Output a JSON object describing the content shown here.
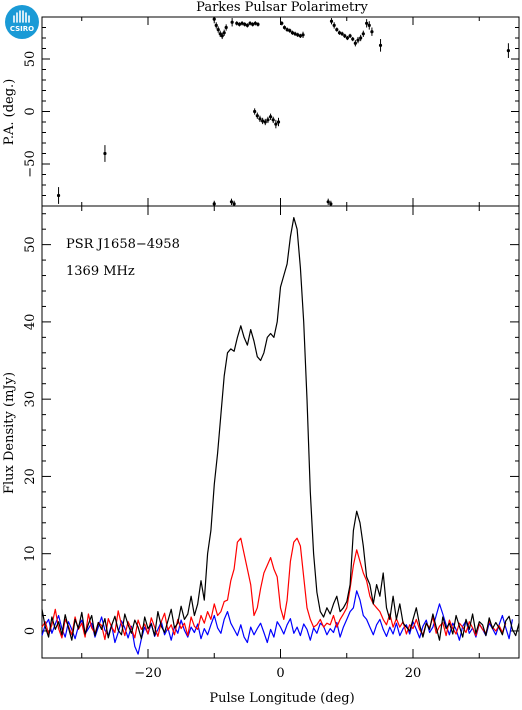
{
  "title": "Parkes Pulsar Polarimetry",
  "logo": {
    "text": "CSIRO",
    "color": "#1a9ad6"
  },
  "chart_data": [
    {
      "type": "scatter",
      "panel": "position-angle",
      "ylabel": "P.A. (deg.)",
      "xlim": [
        -36,
        36
      ],
      "ylim": [
        -90,
        90
      ],
      "yticks": [
        -50,
        0,
        50
      ],
      "ytick_labels": [
        "−50",
        "0",
        "50"
      ],
      "points": [
        {
          "x": -33.5,
          "y": -80,
          "err": 8
        },
        {
          "x": -26.5,
          "y": -40,
          "err": 8
        },
        {
          "x": -10.0,
          "y": 88,
          "err": 4
        },
        {
          "x": -9.7,
          "y": 82,
          "err": 3
        },
        {
          "x": -9.4,
          "y": 78,
          "err": 3
        },
        {
          "x": -9.1,
          "y": 74,
          "err": 3
        },
        {
          "x": -8.8,
          "y": 72,
          "err": 3
        },
        {
          "x": -8.5,
          "y": 75,
          "err": 3
        },
        {
          "x": -8.2,
          "y": 80,
          "err": 3
        },
        {
          "x": -7.3,
          "y": 85,
          "err": 4
        },
        {
          "x": -6.6,
          "y": 84,
          "err": 2
        },
        {
          "x": -6.2,
          "y": 83,
          "err": 2
        },
        {
          "x": -5.8,
          "y": 84,
          "err": 2
        },
        {
          "x": -5.4,
          "y": 83,
          "err": 2
        },
        {
          "x": -5.0,
          "y": 82,
          "err": 2
        },
        {
          "x": -4.6,
          "y": 84,
          "err": 2
        },
        {
          "x": -4.2,
          "y": 83,
          "err": 2
        },
        {
          "x": -3.8,
          "y": 84,
          "err": 2
        },
        {
          "x": -3.4,
          "y": 83,
          "err": 2
        },
        {
          "x": -3.9,
          "y": 0,
          "err": 3
        },
        {
          "x": -3.5,
          "y": -4,
          "err": 3
        },
        {
          "x": -3.1,
          "y": -7,
          "err": 3
        },
        {
          "x": -2.7,
          "y": -9,
          "err": 3
        },
        {
          "x": -2.3,
          "y": -10,
          "err": 3
        },
        {
          "x": -1.9,
          "y": -8,
          "err": 3
        },
        {
          "x": -1.5,
          "y": -5,
          "err": 3
        },
        {
          "x": -1.1,
          "y": -8,
          "err": 3
        },
        {
          "x": -0.7,
          "y": -12,
          "err": 4
        },
        {
          "x": -0.3,
          "y": -10,
          "err": 4
        },
        {
          "x": -10.0,
          "y": -88,
          "err": 3
        },
        {
          "x": -7.4,
          "y": -86,
          "err": 3
        },
        {
          "x": -7.0,
          "y": -88,
          "err": 3
        },
        {
          "x": 0.2,
          "y": 84,
          "err": 2
        },
        {
          "x": 0.6,
          "y": 80,
          "err": 2
        },
        {
          "x": 1.0,
          "y": 78,
          "err": 2
        },
        {
          "x": 1.4,
          "y": 77,
          "err": 2
        },
        {
          "x": 1.8,
          "y": 75,
          "err": 2
        },
        {
          "x": 2.2,
          "y": 74,
          "err": 2
        },
        {
          "x": 2.6,
          "y": 73,
          "err": 2
        },
        {
          "x": 3.0,
          "y": 72,
          "err": 2
        },
        {
          "x": 3.4,
          "y": 73,
          "err": 3
        },
        {
          "x": 7.2,
          "y": -86,
          "err": 3
        },
        {
          "x": 7.6,
          "y": -88,
          "err": 3
        },
        {
          "x": 7.7,
          "y": 86,
          "err": 3
        },
        {
          "x": 8.1,
          "y": 82,
          "err": 3
        },
        {
          "x": 8.5,
          "y": 78,
          "err": 2
        },
        {
          "x": 8.9,
          "y": 75,
          "err": 2
        },
        {
          "x": 9.3,
          "y": 74,
          "err": 2
        },
        {
          "x": 9.7,
          "y": 72,
          "err": 2
        },
        {
          "x": 10.1,
          "y": 70,
          "err": 2
        },
        {
          "x": 10.5,
          "y": 72,
          "err": 2
        },
        {
          "x": 10.9,
          "y": 69,
          "err": 2
        },
        {
          "x": 11.3,
          "y": 65,
          "err": 3
        },
        {
          "x": 11.7,
          "y": 68,
          "err": 3
        },
        {
          "x": 12.1,
          "y": 70,
          "err": 3
        },
        {
          "x": 12.5,
          "y": 74,
          "err": 3
        },
        {
          "x": 13.0,
          "y": 84,
          "err": 4
        },
        {
          "x": 13.4,
          "y": 82,
          "err": 4
        },
        {
          "x": 13.8,
          "y": 76,
          "err": 4
        },
        {
          "x": 15.1,
          "y": 63,
          "err": 6
        },
        {
          "x": 34.4,
          "y": 58,
          "err": 7
        }
      ]
    },
    {
      "type": "line",
      "panel": "profile",
      "annotations": [
        "PSR J1658−4958",
        "1369 MHz"
      ],
      "xlabel": "Pulse Longitude (deg)",
      "ylabel": "Flux Density (mJy)",
      "xlim": [
        -36,
        36
      ],
      "ylim": [
        -3.5,
        55
      ],
      "xticks": [
        -20,
        0,
        20
      ],
      "xtick_labels": [
        "−20",
        "0",
        "20"
      ],
      "yticks": [
        0,
        10,
        20,
        30,
        40,
        50
      ],
      "ytick_labels": [
        "0",
        "10",
        "20",
        "30",
        "40",
        "50"
      ],
      "series": [
        {
          "color": "#000000",
          "x_start": -36,
          "x_step": 0.5,
          "values": [
            2.8,
            0.5,
            -0.8,
            1.8,
            0.2,
            1.2,
            -0.5,
            2.1,
            0.4,
            -1.2,
            1.5,
            0.3,
            2.4,
            -0.4,
            0.9,
            2.0,
            -0.6,
            1.1,
            0.2,
            1.6,
            -0.9,
            0.7,
            1.9,
            0.1,
            -0.5,
            2.2,
            0.8,
            -0.3,
            1.4,
            0.5,
            -1.0,
            1.8,
            0.3,
            0.9,
            -0.6,
            2.5,
            0.6,
            -0.2,
            1.3,
            2.8,
            0.4,
            1.0,
            3.2,
            1.5,
            2.2,
            4.5,
            2.0,
            3.5,
            6.5,
            4.0,
            10.0,
            13.0,
            19.0,
            23.0,
            28.0,
            33.0,
            36.0,
            36.5,
            36.2,
            38.0,
            39.5,
            38.0,
            37.0,
            39.0,
            37.5,
            35.5,
            35.0,
            36.0,
            38.0,
            38.5,
            38.0,
            40.0,
            44.5,
            46.0,
            47.5,
            51.0,
            53.5,
            52.0,
            47.0,
            40.0,
            30.0,
            18.0,
            10.0,
            5.0,
            2.5,
            1.8,
            3.0,
            2.2,
            3.5,
            4.5,
            2.5,
            3.0,
            3.8,
            6.0,
            13.0,
            15.5,
            14.0,
            11.0,
            7.0,
            6.0,
            3.5,
            6.0,
            4.5,
            7.5,
            3.0,
            1.5,
            4.5,
            1.5,
            3.5,
            1.0,
            0.5,
            0.0,
            1.5,
            3.0,
            0.8,
            -0.8,
            1.0,
            0.2,
            2.2,
            0.5,
            -1.2,
            1.8,
            0.3,
            1.0,
            -0.4,
            2.0,
            0.6,
            -0.8,
            1.5,
            0.2,
            2.2,
            -0.3,
            1.2,
            0.8,
            -0.6,
            1.7,
            0.3,
            1.1,
            0.4,
            -0.5,
            1.3,
            1.9,
            0.2,
            -0.6,
            1.0
          ]
        },
        {
          "color": "#ff0000",
          "x_start": -36,
          "x_step": 0.5,
          "values": [
            0.5,
            1.2,
            -0.4,
            0.8,
            2.8,
            0.3,
            -0.9,
            1.5,
            0.6,
            -0.5,
            1.8,
            0.2,
            1.0,
            -0.8,
            2.2,
            0.4,
            -0.3,
            1.1,
            0.7,
            -1.1,
            1.6,
            0.5,
            -0.2,
            2.6,
            0.8,
            -0.6,
            1.2,
            0.3,
            -0.9,
            1.4,
            0.2,
            0.9,
            -0.4,
            1.7,
            0.5,
            -0.7,
            1.2,
            2.3,
            0.1,
            0.8,
            -0.5,
            1.5,
            0.3,
            1.0,
            -0.6,
            1.8,
            0.6,
            0.2,
            2.0,
            1.0,
            2.5,
            1.5,
            3.5,
            2.0,
            2.5,
            3.8,
            4.0,
            6.5,
            8.0,
            11.5,
            12.0,
            10.0,
            8.0,
            6.0,
            2.0,
            3.0,
            5.5,
            7.5,
            8.5,
            9.5,
            8.0,
            7.0,
            3.0,
            1.5,
            4.0,
            9.0,
            11.5,
            12.0,
            11.0,
            7.0,
            3.0,
            1.5,
            0.5,
            0.8,
            1.5,
            0.5,
            1.0,
            0.8,
            2.0,
            0.5,
            1.5,
            2.2,
            3.0,
            5.5,
            8.5,
            10.5,
            9.0,
            7.5,
            6.5,
            4.5,
            3.5,
            3.0,
            2.5,
            1.5,
            0.8,
            2.2,
            0.5,
            1.6,
            0.5,
            1.2,
            -0.4,
            0.8,
            0.3,
            1.5,
            0.2,
            -0.5,
            1.0,
            0.4,
            1.8,
            -0.3,
            0.6,
            1.1,
            -0.6,
            1.4,
            0.3,
            -0.4,
            1.0,
            0.5,
            -0.2,
            1.2,
            0.4,
            -0.6,
            0.9,
            0.2,
            -0.3,
            1.3,
            0.5,
            0.0,
            0.7,
            -0.2,
            1.0
          ]
        },
        {
          "color": "#0000ff",
          "x_start": -36,
          "x_step": 0.5,
          "values": [
            -0.6,
            0.8,
            1.5,
            -0.3,
            0.9,
            2.0,
            0.3,
            -0.8,
            1.2,
            0.2,
            -1.0,
            0.6,
            1.4,
            -0.4,
            0.3,
            1.0,
            -0.8,
            0.5,
            1.8,
            0.1,
            -0.6,
            0.8,
            -1.5,
            -0.2,
            1.3,
            0.4,
            -0.9,
            0.6,
            -2.0,
            -3.0,
            -1.0,
            0.5,
            -0.4,
            1.0,
            -0.7,
            0.2,
            1.2,
            -0.5,
            0.4,
            -1.2,
            0.6,
            -0.3,
            1.4,
            0.1,
            -0.8,
            0.5,
            -0.2,
            0.9,
            -1.0,
            0.3,
            -0.5,
            0.8,
            2.0,
            0.4,
            -0.3,
            1.5,
            2.5,
            1.0,
            0.2,
            -0.6,
            0.8,
            -0.8,
            -1.5,
            0.5,
            -0.5,
            0.3,
            1.0,
            -0.2,
            -1.5,
            0.2,
            -0.8,
            1.2,
            0.5,
            -0.4,
            0.8,
            1.6,
            -0.3,
            0.5,
            -0.6,
            0.9,
            0.2,
            -1.2,
            0.4,
            -0.3,
            1.0,
            0.6,
            -0.5,
            0.3,
            -0.2,
            1.1,
            -0.8,
            0.5,
            1.5,
            2.5,
            3.0,
            5.2,
            4.0,
            2.0,
            1.5,
            0.5,
            -0.5,
            0.8,
            1.5,
            0.2,
            -0.7,
            0.5,
            -0.4,
            1.0,
            -0.6,
            0.3,
            0.8,
            -0.4,
            1.2,
            0.2,
            -0.9,
            0.6,
            1.4,
            -0.2,
            0.5,
            2.0,
            3.5,
            2.2,
            0.8,
            -0.5,
            1.0,
            0.2,
            -1.2,
            0.6,
            1.3,
            -0.3,
            0.4,
            -0.8,
            0.9,
            0.2,
            -0.6,
            1.0,
            0.3,
            -0.5,
            0.8,
            2.0,
            0.4,
            -1.0,
            1.5
          ]
        }
      ]
    }
  ]
}
